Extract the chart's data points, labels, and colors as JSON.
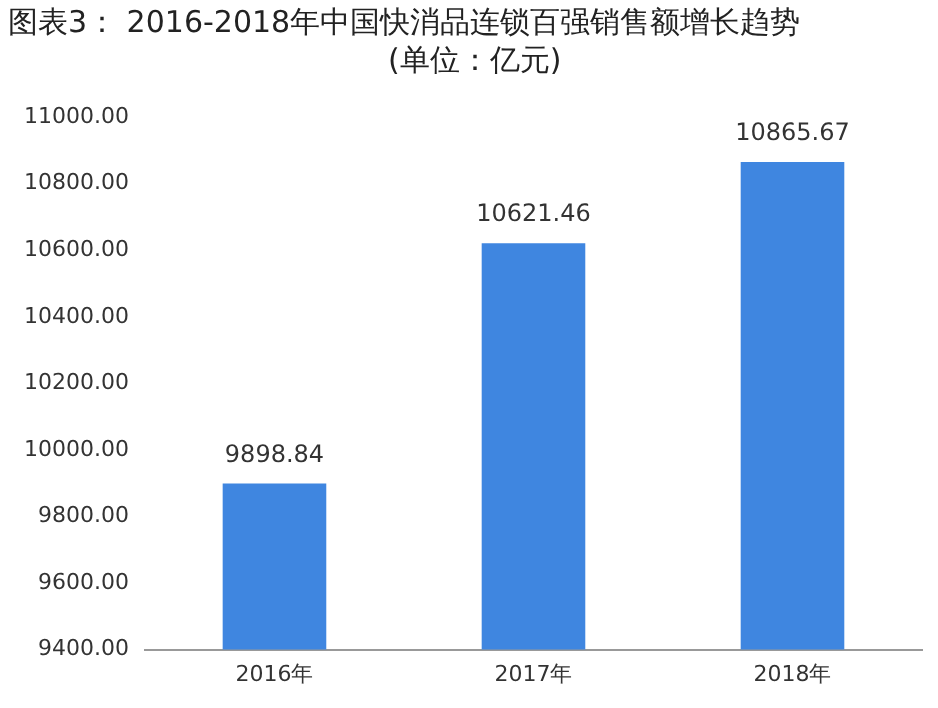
{
  "chart_data": {
    "type": "bar",
    "title": "图表3：  2016-2018年中国快消品连锁百强销售额增长趋势",
    "subtitle": "(单位：亿元)",
    "categories": [
      "2016年",
      "2017年",
      "2018年"
    ],
    "values": [
      9898.84,
      10621.46,
      10865.67
    ],
    "color": "#3f86e0",
    "ylim": [
      9400,
      11000
    ],
    "yticks": [
      {
        "value": 9400,
        "label": "9400.00"
      },
      {
        "value": 9600,
        "label": "9600.00"
      },
      {
        "value": 9800,
        "label": "9800.00"
      },
      {
        "value": 10000,
        "label": "10000.00"
      },
      {
        "value": 10200,
        "label": "10200.00"
      },
      {
        "value": 10400,
        "label": "10400.00"
      },
      {
        "value": 10600,
        "label": "10600.00"
      },
      {
        "value": 10800,
        "label": "10800.00"
      },
      {
        "value": 11000,
        "label": "11000.00"
      }
    ],
    "grid": false,
    "legend": false,
    "data_labels": true
  }
}
